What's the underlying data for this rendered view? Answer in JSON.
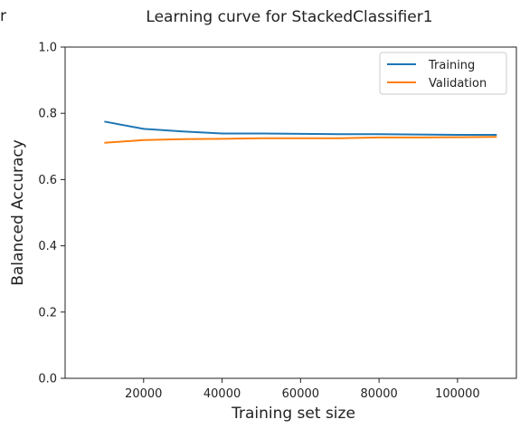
{
  "fragment_text": "r",
  "chart_data": {
    "type": "line",
    "title": "Learning curve for StackedClassifier1",
    "xlabel": "Training set size",
    "ylabel": "Balanced Accuracy",
    "xlim": [
      0,
      115000
    ],
    "ylim": [
      0.0,
      1.0
    ],
    "x_ticks": [
      20000,
      40000,
      60000,
      80000,
      100000
    ],
    "y_ticks": [
      0.0,
      0.2,
      0.4,
      0.6,
      0.8,
      1.0
    ],
    "x_tick_labels": [
      "20000",
      "40000",
      "60000",
      "80000",
      "100000"
    ],
    "y_tick_labels": [
      "0.0",
      "0.2",
      "0.4",
      "0.6",
      "0.8",
      "1.0"
    ],
    "grid": false,
    "legend_position": "top-right",
    "x": [
      10000,
      20000,
      30000,
      40000,
      50000,
      60000,
      70000,
      80000,
      90000,
      100000,
      110000
    ],
    "series": [
      {
        "name": "Training",
        "color": "#1f77b4",
        "values": [
          0.775,
          0.753,
          0.745,
          0.739,
          0.739,
          0.738,
          0.737,
          0.737,
          0.736,
          0.735,
          0.735
        ]
      },
      {
        "name": "Validation",
        "color": "#ff7f0e",
        "values": [
          0.711,
          0.719,
          0.722,
          0.723,
          0.725,
          0.725,
          0.725,
          0.727,
          0.727,
          0.728,
          0.729
        ]
      }
    ]
  }
}
